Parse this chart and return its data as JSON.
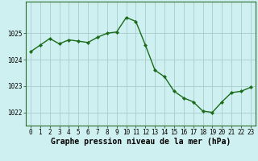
{
  "x": [
    0,
    1,
    2,
    3,
    4,
    5,
    6,
    7,
    8,
    9,
    10,
    11,
    12,
    13,
    14,
    15,
    16,
    17,
    18,
    19,
    20,
    21,
    22,
    23
  ],
  "y": [
    1024.3,
    1024.55,
    1024.8,
    1024.6,
    1024.75,
    1024.7,
    1024.65,
    1024.85,
    1025.0,
    1025.05,
    1025.6,
    1025.45,
    1024.55,
    1023.6,
    1023.35,
    1022.8,
    1022.55,
    1022.4,
    1022.05,
    1022.0,
    1022.4,
    1022.75,
    1022.8,
    1022.95
  ],
  "line_color": "#1a6b1a",
  "marker": "D",
  "marker_size": 2.2,
  "background_color": "#cff0f0",
  "grid_color": "#aacccc",
  "xlabel": "Graphe pression niveau de la mer (hPa)",
  "xlabel_fontsize": 7.0,
  "yticks": [
    1022,
    1023,
    1024,
    1025
  ],
  "xticks": [
    0,
    1,
    2,
    3,
    4,
    5,
    6,
    7,
    8,
    9,
    10,
    11,
    12,
    13,
    14,
    15,
    16,
    17,
    18,
    19,
    20,
    21,
    22,
    23
  ],
  "ylim": [
    1021.5,
    1026.2
  ],
  "xlim": [
    -0.5,
    23.5
  ],
  "tick_fontsize": 5.5,
  "axis_color": "#2d6b2d",
  "linewidth": 1.0
}
